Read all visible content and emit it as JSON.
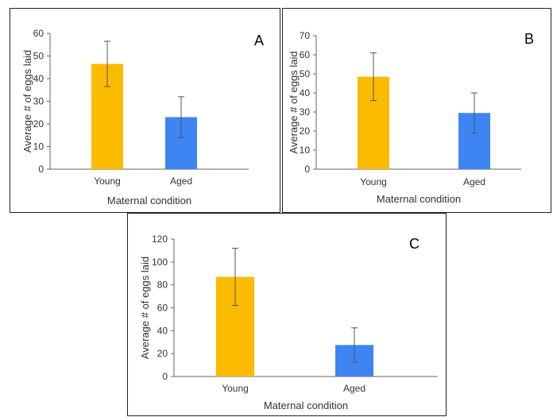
{
  "chart_data": [
    {
      "type": "bar",
      "panel_label": "A",
      "categories": [
        "Young",
        "Aged"
      ],
      "values": [
        46.5,
        23
      ],
      "error": [
        10,
        9
      ],
      "colors": [
        "#fbbb00",
        "#3d85f2"
      ],
      "xlabel": "Maternal condition",
      "ylabel": "Average # of eggs laid",
      "ylim": [
        0,
        60
      ],
      "yticks": [
        0,
        10,
        20,
        30,
        40,
        50,
        60
      ],
      "grid": false
    },
    {
      "type": "bar",
      "panel_label": "B",
      "categories": [
        "Young",
        "Aged"
      ],
      "values": [
        48.5,
        29.5
      ],
      "error": [
        12.5,
        10.5
      ],
      "colors": [
        "#fbbb00",
        "#3d85f2"
      ],
      "xlabel": "Maternal condition",
      "ylabel": "Average # of eggs laid",
      "ylim": [
        0,
        70
      ],
      "yticks": [
        0,
        10,
        20,
        30,
        40,
        50,
        60,
        70
      ],
      "grid": false
    },
    {
      "type": "bar",
      "panel_label": "C",
      "categories": [
        "Young",
        "Aged"
      ],
      "values": [
        87,
        27.5
      ],
      "error": [
        25,
        15
      ],
      "colors": [
        "#fbbb00",
        "#3d85f2"
      ],
      "xlabel": "Maternal condition",
      "ylabel": "Average # of eggs laid",
      "ylim": [
        0,
        120
      ],
      "yticks": [
        0,
        20,
        40,
        60,
        80,
        100,
        120
      ],
      "grid": false
    }
  ]
}
